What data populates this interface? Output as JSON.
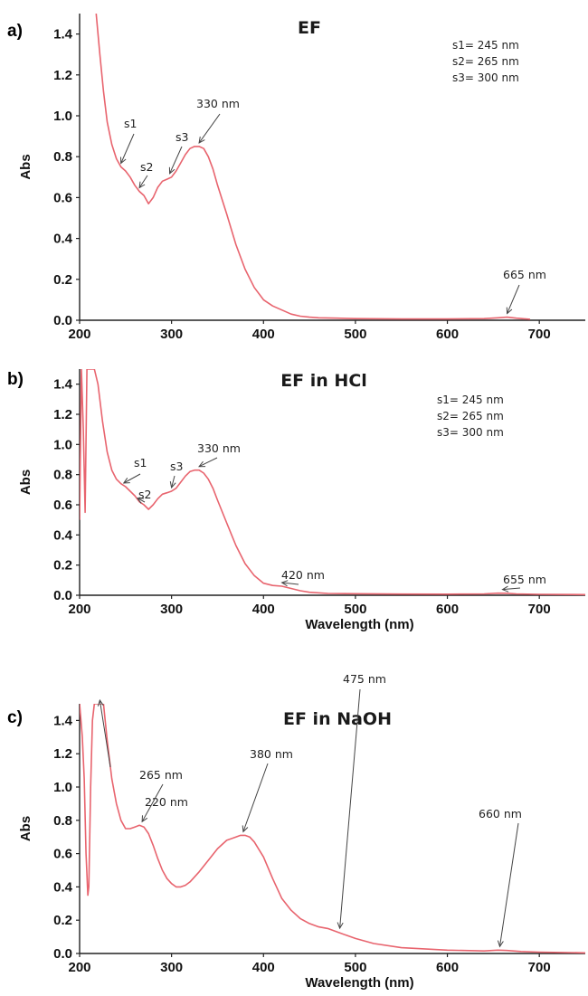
{
  "chart_data": [
    {
      "panel_label": "a)",
      "type": "line",
      "title": "EF",
      "xlabel": "",
      "ylabel": "Abs",
      "xlim": [
        200,
        750
      ],
      "ylim": [
        0,
        1.5
      ],
      "xticks": [
        200,
        300,
        400,
        500,
        600,
        700
      ],
      "yticks": [
        0.0,
        0.2,
        0.4,
        0.6,
        0.8,
        1.0,
        1.2,
        1.4
      ],
      "line_color": "#e8646e",
      "legend": [
        "s1= 245 nm",
        "s2= 265 nm",
        "s3= 300 nm"
      ],
      "series": [
        {
          "x": [
            218,
            222,
            226,
            230,
            235,
            240,
            245,
            250,
            255,
            260,
            265,
            270,
            275,
            280,
            285,
            290,
            295,
            300,
            305,
            310,
            315,
            320,
            325,
            330,
            335,
            340,
            345,
            350,
            360,
            370,
            380,
            390,
            400,
            410,
            420,
            430,
            440,
            450,
            460,
            480,
            500,
            550,
            600,
            640,
            655,
            665,
            675,
            690
          ],
          "y": [
            1.5,
            1.3,
            1.12,
            0.97,
            0.86,
            0.79,
            0.75,
            0.73,
            0.7,
            0.66,
            0.63,
            0.61,
            0.57,
            0.6,
            0.65,
            0.68,
            0.69,
            0.7,
            0.73,
            0.77,
            0.81,
            0.84,
            0.85,
            0.85,
            0.84,
            0.8,
            0.74,
            0.66,
            0.52,
            0.37,
            0.25,
            0.16,
            0.1,
            0.07,
            0.05,
            0.03,
            0.02,
            0.015,
            0.012,
            0.01,
            0.008,
            0.006,
            0.006,
            0.008,
            0.012,
            0.015,
            0.01,
            0.005
          ]
        }
      ],
      "annotations": [
        {
          "text": "s1",
          "x": 245,
          "y": 0.75
        },
        {
          "text": "s2",
          "x": 265,
          "y": 0.63
        },
        {
          "text": "s3",
          "x": 298,
          "y": 0.7
        },
        {
          "text": "330 nm",
          "x": 330,
          "y": 0.85
        },
        {
          "text": "665 nm",
          "x": 665,
          "y": 0.015
        }
      ]
    },
    {
      "panel_label": "b)",
      "type": "line",
      "title": "EF in HCl",
      "xlabel": "Wavelength (nm)",
      "ylabel": "Abs",
      "xlim": [
        200,
        750
      ],
      "ylim": [
        0,
        1.5
      ],
      "xticks": [
        200,
        300,
        400,
        500,
        600,
        700
      ],
      "yticks": [
        0.0,
        0.2,
        0.4,
        0.6,
        0.8,
        1.0,
        1.2,
        1.4
      ],
      "line_color": "#e8646e",
      "legend": [
        "s1= 245 nm",
        "s2= 265 nm",
        "s3= 300 nm"
      ],
      "series": [
        {
          "x": [
            200,
            202,
            204,
            206,
            208,
            210,
            213,
            216,
            220,
            225,
            230,
            235,
            240,
            245,
            250,
            255,
            260,
            265,
            270,
            275,
            280,
            285,
            290,
            295,
            300,
            305,
            310,
            315,
            320,
            325,
            330,
            335,
            340,
            345,
            350,
            360,
            370,
            380,
            390,
            400,
            410,
            420,
            430,
            440,
            450,
            470,
            500,
            550,
            600,
            640,
            655,
            665,
            675,
            700,
            750
          ],
          "y": [
            0.5,
            1.5,
            1.1,
            0.55,
            1.5,
            1.5,
            1.5,
            1.5,
            1.4,
            1.15,
            0.95,
            0.83,
            0.77,
            0.74,
            0.72,
            0.69,
            0.66,
            0.62,
            0.6,
            0.57,
            0.6,
            0.64,
            0.67,
            0.68,
            0.69,
            0.71,
            0.75,
            0.79,
            0.82,
            0.83,
            0.83,
            0.81,
            0.77,
            0.71,
            0.63,
            0.48,
            0.33,
            0.21,
            0.13,
            0.08,
            0.065,
            0.06,
            0.045,
            0.03,
            0.02,
            0.012,
            0.01,
            0.008,
            0.007,
            0.009,
            0.014,
            0.013,
            0.009,
            0.006,
            0.004
          ]
        }
      ],
      "annotations": [
        {
          "text": "s1",
          "x": 248,
          "y": 0.72
        },
        {
          "text": "s2",
          "x": 263,
          "y": 0.62
        },
        {
          "text": "s3",
          "x": 300,
          "y": 0.69
        },
        {
          "text": "330 nm",
          "x": 330,
          "y": 0.83
        },
        {
          "text": "420 nm",
          "x": 420,
          "y": 0.06
        },
        {
          "text": "655 nm",
          "x": 660,
          "y": 0.014
        }
      ]
    },
    {
      "panel_label": "c)",
      "type": "line",
      "title": "EF in NaOH",
      "xlabel": "Wavelength (nm)",
      "ylabel": "Abs",
      "xlim": [
        200,
        750
      ],
      "ylim": [
        0,
        1.5
      ],
      "xticks": [
        200,
        300,
        400,
        500,
        600,
        700
      ],
      "yticks": [
        0.0,
        0.2,
        0.4,
        0.6,
        0.8,
        1.0,
        1.2,
        1.4
      ],
      "line_color": "#e8646e",
      "legend": [],
      "series": [
        {
          "x": [
            200,
            203,
            205,
            207,
            209,
            210,
            212,
            214,
            216,
            218,
            220,
            223,
            226,
            230,
            235,
            240,
            245,
            250,
            255,
            260,
            265,
            270,
            275,
            280,
            285,
            290,
            295,
            300,
            305,
            310,
            315,
            320,
            330,
            340,
            350,
            360,
            370,
            375,
            380,
            385,
            390,
            400,
            410,
            420,
            430,
            440,
            450,
            460,
            470,
            480,
            490,
            500,
            520,
            550,
            600,
            640,
            655,
            665,
            680,
            700,
            750
          ],
          "y": [
            1.5,
            1.3,
            1.05,
            0.6,
            0.35,
            0.4,
            1.0,
            1.4,
            1.5,
            1.5,
            1.5,
            1.5,
            1.5,
            1.28,
            1.05,
            0.9,
            0.8,
            0.75,
            0.75,
            0.76,
            0.77,
            0.76,
            0.72,
            0.65,
            0.57,
            0.5,
            0.45,
            0.42,
            0.4,
            0.4,
            0.41,
            0.43,
            0.49,
            0.56,
            0.63,
            0.68,
            0.7,
            0.71,
            0.71,
            0.7,
            0.67,
            0.58,
            0.45,
            0.33,
            0.26,
            0.21,
            0.18,
            0.16,
            0.15,
            0.13,
            0.11,
            0.09,
            0.06,
            0.035,
            0.02,
            0.015,
            0.02,
            0.018,
            0.012,
            0.008,
            0.004
          ]
        }
      ],
      "annotations": [
        {
          "text": "220 nm",
          "x": 222,
          "y": 1.5
        },
        {
          "text": "265 nm",
          "x": 268,
          "y": 0.77
        },
        {
          "text": "380 nm",
          "x": 378,
          "y": 0.71
        },
        {
          "text": "475 nm",
          "x": 483,
          "y": 0.13
        },
        {
          "text": "660 nm",
          "x": 657,
          "y": 0.02
        }
      ]
    }
  ]
}
